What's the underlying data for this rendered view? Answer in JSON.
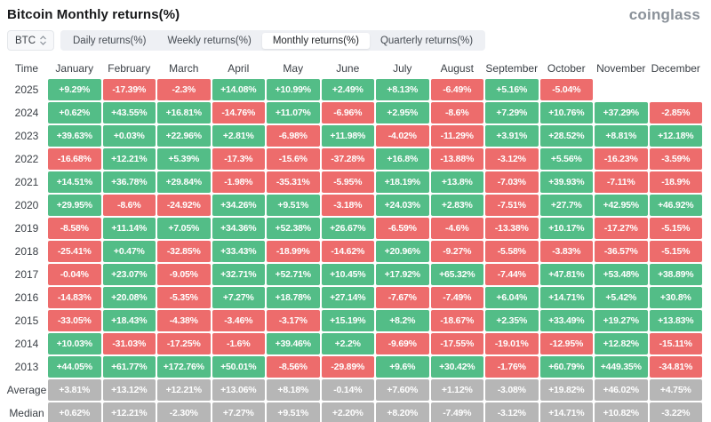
{
  "header": {
    "title": "Bitcoin Monthly returns(%)",
    "logo_text": "coinglass"
  },
  "controls": {
    "coin_selector": {
      "value": "BTC"
    },
    "tabs": [
      {
        "label": "Daily returns(%)",
        "active": false
      },
      {
        "label": "Weekly returns(%)",
        "active": false
      },
      {
        "label": "Monthly returns(%)",
        "active": true
      },
      {
        "label": "Quarterly returns(%)",
        "active": false
      }
    ]
  },
  "colors": {
    "green": "#53bd87",
    "red": "#ed6c6c",
    "neutral": "#b6b6b6"
  },
  "table": {
    "columns": [
      "Time",
      "January",
      "February",
      "March",
      "April",
      "May",
      "June",
      "July",
      "August",
      "September",
      "October",
      "November",
      "December"
    ],
    "rows": [
      {
        "label": "2025",
        "type": "year",
        "values": [
          "+9.29%",
          "-17.39%",
          "-2.3%",
          "+14.08%",
          "+10.99%",
          "+2.49%",
          "+8.13%",
          "-6.49%",
          "+5.16%",
          "-5.04%",
          null,
          null
        ]
      },
      {
        "label": "2024",
        "type": "year",
        "values": [
          "+0.62%",
          "+43.55%",
          "+16.81%",
          "-14.76%",
          "+11.07%",
          "-6.96%",
          "+2.95%",
          "-8.6%",
          "+7.29%",
          "+10.76%",
          "+37.29%",
          "-2.85%"
        ]
      },
      {
        "label": "2023",
        "type": "year",
        "values": [
          "+39.63%",
          "+0.03%",
          "+22.96%",
          "+2.81%",
          "-6.98%",
          "+11.98%",
          "-4.02%",
          "-11.29%",
          "+3.91%",
          "+28.52%",
          "+8.81%",
          "+12.18%"
        ]
      },
      {
        "label": "2022",
        "type": "year",
        "values": [
          "-16.68%",
          "+12.21%",
          "+5.39%",
          "-17.3%",
          "-15.6%",
          "-37.28%",
          "+16.8%",
          "-13.88%",
          "-3.12%",
          "+5.56%",
          "-16.23%",
          "-3.59%"
        ]
      },
      {
        "label": "2021",
        "type": "year",
        "values": [
          "+14.51%",
          "+36.78%",
          "+29.84%",
          "-1.98%",
          "-35.31%",
          "-5.95%",
          "+18.19%",
          "+13.8%",
          "-7.03%",
          "+39.93%",
          "-7.11%",
          "-18.9%"
        ]
      },
      {
        "label": "2020",
        "type": "year",
        "values": [
          "+29.95%",
          "-8.6%",
          "-24.92%",
          "+34.26%",
          "+9.51%",
          "-3.18%",
          "+24.03%",
          "+2.83%",
          "-7.51%",
          "+27.7%",
          "+42.95%",
          "+46.92%"
        ]
      },
      {
        "label": "2019",
        "type": "year",
        "values": [
          "-8.58%",
          "+11.14%",
          "+7.05%",
          "+34.36%",
          "+52.38%",
          "+26.67%",
          "-6.59%",
          "-4.6%",
          "-13.38%",
          "+10.17%",
          "-17.27%",
          "-5.15%"
        ]
      },
      {
        "label": "2018",
        "type": "year",
        "values": [
          "-25.41%",
          "+0.47%",
          "-32.85%",
          "+33.43%",
          "-18.99%",
          "-14.62%",
          "+20.96%",
          "-9.27%",
          "-5.58%",
          "-3.83%",
          "-36.57%",
          "-5.15%"
        ]
      },
      {
        "label": "2017",
        "type": "year",
        "values": [
          "-0.04%",
          "+23.07%",
          "-9.05%",
          "+32.71%",
          "+52.71%",
          "+10.45%",
          "+17.92%",
          "+65.32%",
          "-7.44%",
          "+47.81%",
          "+53.48%",
          "+38.89%"
        ]
      },
      {
        "label": "2016",
        "type": "year",
        "values": [
          "-14.83%",
          "+20.08%",
          "-5.35%",
          "+7.27%",
          "+18.78%",
          "+27.14%",
          "-7.67%",
          "-7.49%",
          "+6.04%",
          "+14.71%",
          "+5.42%",
          "+30.8%"
        ]
      },
      {
        "label": "2015",
        "type": "year",
        "values": [
          "-33.05%",
          "+18.43%",
          "-4.38%",
          "-3.46%",
          "-3.17%",
          "+15.19%",
          "+8.2%",
          "-18.67%",
          "+2.35%",
          "+33.49%",
          "+19.27%",
          "+13.83%"
        ]
      },
      {
        "label": "2014",
        "type": "year",
        "values": [
          "+10.03%",
          "-31.03%",
          "-17.25%",
          "-1.6%",
          "+39.46%",
          "+2.2%",
          "-9.69%",
          "-17.55%",
          "-19.01%",
          "-12.95%",
          "+12.82%",
          "-15.11%"
        ]
      },
      {
        "label": "2013",
        "type": "year",
        "values": [
          "+44.05%",
          "+61.77%",
          "+172.76%",
          "+50.01%",
          "-8.56%",
          "-29.89%",
          "+9.6%",
          "+30.42%",
          "-1.76%",
          "+60.79%",
          "+449.35%",
          "-34.81%"
        ]
      },
      {
        "label": "Average",
        "type": "summary",
        "values": [
          "+3.81%",
          "+13.12%",
          "+12.21%",
          "+13.06%",
          "+8.18%",
          "-0.14%",
          "+7.60%",
          "+1.12%",
          "-3.08%",
          "+19.82%",
          "+46.02%",
          "+4.75%"
        ]
      },
      {
        "label": "Median",
        "type": "summary",
        "values": [
          "+0.62%",
          "+12.21%",
          "-2.30%",
          "+7.27%",
          "+9.51%",
          "+2.20%",
          "+8.20%",
          "-7.49%",
          "-3.12%",
          "+14.71%",
          "+10.82%",
          "-3.22%"
        ]
      }
    ]
  }
}
